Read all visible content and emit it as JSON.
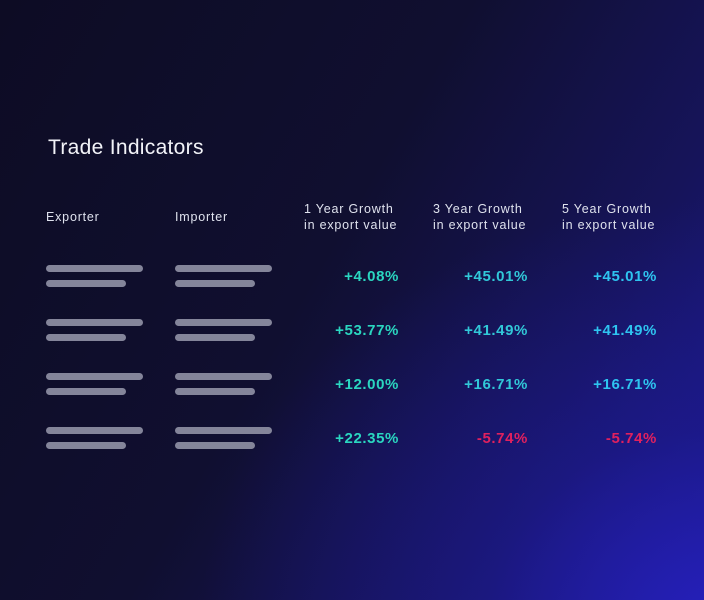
{
  "title": "Trade Indicators",
  "headers": {
    "exporter": "Exporter",
    "importer": "Importer",
    "growth_1y": [
      "1 Year Growth",
      "in export value"
    ],
    "growth_3y": [
      "3 Year Growth",
      "in export value"
    ],
    "growth_5y": [
      "5 Year Growth",
      "in export value"
    ]
  },
  "rows": [
    {
      "y1": "+4.08%",
      "y3": "+45.01%",
      "y5": "+45.01%"
    },
    {
      "y1": "+53.77%",
      "y3": "+41.49%",
      "y5": "+41.49%"
    },
    {
      "y1": "+12.00%",
      "y3": "+16.71%",
      "y5": "+16.71%"
    },
    {
      "y1": "+22.35%",
      "y3": "-5.74%",
      "y5": "-5.74%"
    }
  ],
  "colors": {
    "positive_1y": "#2ad6c0",
    "positive_3y": "#31c8d8",
    "positive_5y": "#2ec4f0",
    "negative": "#e0205e",
    "placeholder_bar": "#84859a"
  }
}
